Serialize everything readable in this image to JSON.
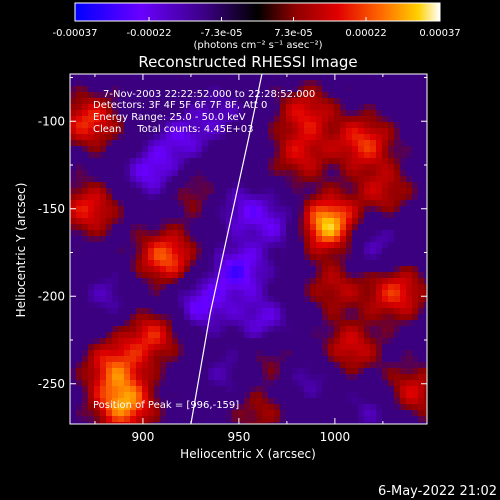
{
  "chart_data": {
    "type": "heatmap",
    "title": "Reconstructed RHESSI Image",
    "xlabel": "Heliocentric X (arcsec)",
    "ylabel": "Heliocentric Y (arcsec)",
    "xlim": [
      862,
      1048
    ],
    "ylim": [
      -273,
      -73
    ],
    "x_ticks": [
      900,
      950,
      1000
    ],
    "y_ticks": [
      -100,
      -150,
      -200,
      -250
    ],
    "colorbar": {
      "range": [
        -0.00037,
        0.00037
      ],
      "tick_labels": [
        "-0.00037",
        "-0.00022",
        "-7.3e-05",
        "7.3e-05",
        "0.00022",
        "0.00037"
      ],
      "unit_label": "(photons cm⁻² s⁻¹ asec⁻²)",
      "colors": [
        "#0000ff",
        "#6a00ff",
        "#3a0080",
        "#000000",
        "#8b0000",
        "#e00000",
        "#ff6a00",
        "#ffd000",
        "#ffffff"
      ]
    },
    "annotations": [
      "7-Nov-2003 22:22:52.000 to 22:28:52.000",
      "Detectors: 3F 4F 5F 6F 7F 8F, Att 0",
      "Energy Range: 25.0 - 50.0 keV",
      "Clean     Total counts: 4.45E+03"
    ],
    "peak_label": "Position of Peak = [996,-159]",
    "peak": {
      "x": 996,
      "y": -159
    },
    "limb_curve": [
      [
        962,
        -73
      ],
      [
        955,
        -110
      ],
      [
        945,
        -160
      ],
      [
        935,
        -210
      ],
      [
        925,
        -273
      ]
    ],
    "sources": [
      {
        "x": 996,
        "y": -159,
        "value": 0.00037
      },
      {
        "x": 912,
        "y": -178,
        "value": 0.00026
      },
      {
        "x": 890,
        "y": -262,
        "value": 0.0003
      },
      {
        "x": 885,
        "y": -240,
        "value": 0.00022
      },
      {
        "x": 872,
        "y": -100,
        "value": 0.00022
      },
      {
        "x": 872,
        "y": -150,
        "value": 0.0002
      },
      {
        "x": 905,
        "y": -222,
        "value": 0.0002
      },
      {
        "x": 1015,
        "y": -112,
        "value": 0.00022
      },
      {
        "x": 1032,
        "y": -198,
        "value": 0.00022
      },
      {
        "x": 1008,
        "y": -230,
        "value": 0.00018
      },
      {
        "x": 1040,
        "y": -255,
        "value": 0.00018
      },
      {
        "x": 985,
        "y": -95,
        "value": 0.00018
      },
      {
        "x": 1025,
        "y": -140,
        "value": 0.00015
      },
      {
        "x": 968,
        "y": -235,
        "value": 0.00014
      },
      {
        "x": 982,
        "y": -120,
        "value": 0.00016
      },
      {
        "x": 1000,
        "y": -195,
        "value": 0.00014
      },
      {
        "x": 925,
        "y": -140,
        "value": 0.00012
      },
      {
        "x": 960,
        "y": -265,
        "value": 0.00012
      },
      {
        "x": 930,
        "y": -205,
        "value": -0.0002
      },
      {
        "x": 950,
        "y": -185,
        "value": -0.00022
      },
      {
        "x": 905,
        "y": -130,
        "value": -0.0002
      },
      {
        "x": 920,
        "y": -110,
        "value": -0.00016
      },
      {
        "x": 963,
        "y": -215,
        "value": -0.00018
      },
      {
        "x": 952,
        "y": -150,
        "value": -0.00016
      },
      {
        "x": 882,
        "y": -200,
        "value": -0.00012
      },
      {
        "x": 972,
        "y": -160,
        "value": -0.00015
      },
      {
        "x": 985,
        "y": -245,
        "value": -0.00014
      },
      {
        "x": 945,
        "y": -245,
        "value": -0.00012
      },
      {
        "x": 1020,
        "y": -265,
        "value": -0.00012
      },
      {
        "x": 1020,
        "y": -170,
        "value": -0.00014
      },
      {
        "x": 940,
        "y": -95,
        "value": -0.00012
      }
    ]
  },
  "footer": {
    "timestamp": "6-May-2022 21:02"
  }
}
